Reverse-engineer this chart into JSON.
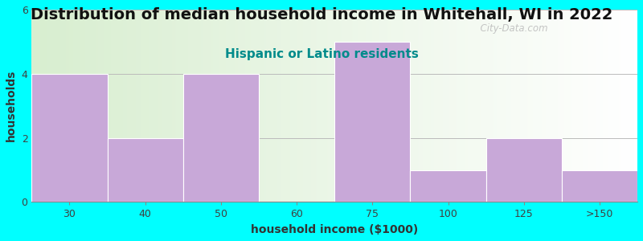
{
  "title": "Distribution of median household income in Whitehall, WI in 2022",
  "subtitle": "Hispanic or Latino residents",
  "subtitle_color": "#008B8B",
  "xlabel": "household income ($1000)",
  "ylabel": "households",
  "categories": [
    "30",
    "40",
    "50",
    "60",
    "75",
    "100",
    "125",
    ">150"
  ],
  "values": [
    4,
    2,
    4,
    0,
    5,
    1,
    2,
    1
  ],
  "bar_color": "#C8A8D8",
  "bar_edge_color": "#C8A8D8",
  "ylim": [
    0,
    6
  ],
  "yticks": [
    0,
    2,
    4,
    6
  ],
  "background_color": "#00FFFF",
  "plot_bg_color_start": "#D8EED0",
  "plot_bg_color_end": "#FFFFFF",
  "title_fontsize": 14,
  "subtitle_fontsize": 11,
  "label_fontsize": 10,
  "tick_fontsize": 9,
  "watermark": "  City-Data.com"
}
